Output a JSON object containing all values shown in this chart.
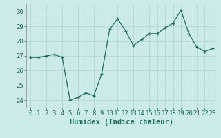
{
  "x": [
    0,
    1,
    2,
    3,
    4,
    5,
    6,
    7,
    8,
    9,
    10,
    11,
    12,
    13,
    14,
    15,
    16,
    17,
    18,
    19,
    20,
    21,
    22,
    23
  ],
  "y": [
    26.9,
    26.9,
    27.0,
    27.1,
    26.9,
    24.0,
    24.2,
    24.5,
    24.3,
    25.8,
    28.8,
    29.5,
    28.7,
    27.7,
    28.1,
    28.5,
    28.5,
    28.9,
    29.2,
    30.1,
    28.5,
    27.6,
    27.3,
    27.5
  ],
  "xlabel": "Humidex (Indice chaleur)",
  "ylim": [
    23.5,
    30.5
  ],
  "xlim": [
    -0.5,
    23.5
  ],
  "yticks": [
    24,
    25,
    26,
    27,
    28,
    29,
    30
  ],
  "xticks": [
    0,
    1,
    2,
    3,
    4,
    5,
    6,
    7,
    8,
    9,
    10,
    11,
    12,
    13,
    14,
    15,
    16,
    17,
    18,
    19,
    20,
    21,
    22,
    23
  ],
  "line_color": "#1a6b5e",
  "marker": "+",
  "bg_color": "#cceae7",
  "grid_color": "#b8d8d5",
  "xlabel_fontsize": 7.5,
  "tick_fontsize": 6.5
}
